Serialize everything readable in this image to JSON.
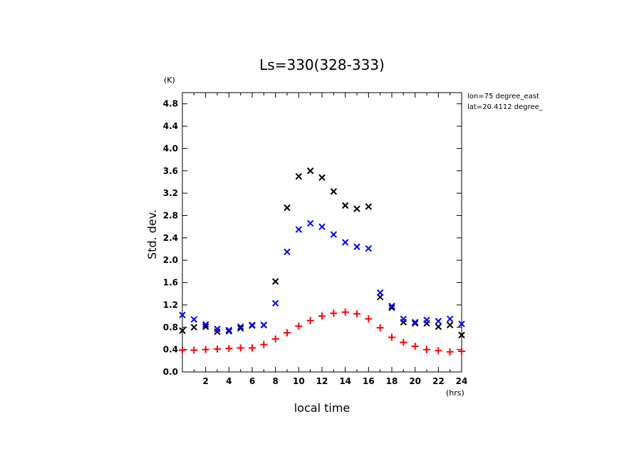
{
  "chart_data": {
    "type": "scatter",
    "title": "Ls=330(328-333)",
    "xlabel": "local time",
    "ylabel": "Std. dev.",
    "x_unit": "(hrs)",
    "y_unit": "(K)",
    "annotations": [
      "lon=75 degree_east",
      "lat=20.4112 degree_"
    ],
    "xlim": [
      0,
      24
    ],
    "ylim": [
      0,
      5.0
    ],
    "x_ticks": [
      2,
      4,
      6,
      8,
      10,
      12,
      14,
      16,
      18,
      20,
      22,
      24
    ],
    "y_ticks": [
      0.0,
      0.4,
      0.8,
      1.2,
      1.6,
      2.0,
      2.4,
      2.8,
      3.2,
      3.6,
      4.0,
      4.4,
      4.8
    ],
    "grid": false,
    "x": [
      0,
      1,
      2,
      3,
      4,
      5,
      6,
      7,
      8,
      9,
      10,
      11,
      12,
      13,
      14,
      15,
      16,
      17,
      18,
      19,
      20,
      21,
      22,
      23,
      24
    ],
    "series": [
      {
        "marker": "x",
        "color": "#000000",
        "values": [
          0.74,
          0.8,
          0.81,
          0.72,
          0.73,
          0.78,
          0.83,
          0.84,
          1.62,
          2.94,
          3.5,
          3.6,
          3.48,
          3.23,
          2.98,
          2.92,
          2.96,
          1.34,
          1.15,
          0.89,
          0.87,
          0.87,
          0.81,
          0.84,
          0.66
        ]
      },
      {
        "marker": "x",
        "color": "#0000ff",
        "values": [
          1.02,
          0.94,
          0.85,
          0.77,
          0.75,
          0.81,
          0.84,
          0.84,
          1.23,
          2.15,
          2.55,
          2.66,
          2.6,
          2.46,
          2.32,
          2.24,
          2.21,
          1.42,
          1.18,
          0.95,
          0.89,
          0.93,
          0.91,
          0.95,
          0.86
        ]
      },
      {
        "marker": "+",
        "color": "#ff0000",
        "values": [
          0.39,
          0.39,
          0.4,
          0.41,
          0.42,
          0.43,
          0.43,
          0.49,
          0.59,
          0.7,
          0.82,
          0.92,
          1.0,
          1.05,
          1.07,
          1.04,
          0.95,
          0.79,
          0.62,
          0.53,
          0.46,
          0.4,
          0.38,
          0.36,
          0.37
        ]
      }
    ]
  }
}
